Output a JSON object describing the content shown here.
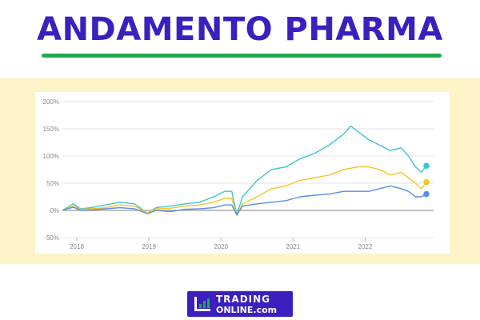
{
  "header": {
    "title": "ANDAMENTO PHARMA"
  },
  "colors": {
    "title": "#3b1fbf",
    "underline": "#1faa4b",
    "band": "#fdf3c6",
    "logo_bg": "#3b1fbf",
    "logo_accent": "#1faa4b"
  },
  "logo": {
    "line1": "TRADING",
    "line2": "ONLINE.com",
    "icon": "bar-chart-icon"
  },
  "chart_data": {
    "type": "line",
    "title": "",
    "xlabel": "",
    "ylabel": "",
    "xlim": [
      2017.8,
      2022.95
    ],
    "ylim": [
      -50,
      200
    ],
    "ytick_values": [
      -50,
      0,
      50,
      100,
      150,
      200
    ],
    "ytick_labels": [
      "-50%",
      "0%",
      "50%",
      "100%",
      "150%",
      "200%"
    ],
    "xtick_values": [
      2018,
      2019,
      2020,
      2021,
      2022
    ],
    "xtick_labels": [
      "2018",
      "2019",
      "2020",
      "2021",
      "2022"
    ],
    "grid": true,
    "zero_line": true,
    "series": [
      {
        "color": "#3dc4d8",
        "points": [
          [
            2017.8,
            0
          ],
          [
            2017.95,
            12
          ],
          [
            2018.05,
            3
          ],
          [
            2018.2,
            5
          ],
          [
            2018.4,
            10
          ],
          [
            2018.6,
            15
          ],
          [
            2018.8,
            12
          ],
          [
            2018.98,
            -5
          ],
          [
            2019.1,
            5
          ],
          [
            2019.3,
            8
          ],
          [
            2019.5,
            12
          ],
          [
            2019.7,
            15
          ],
          [
            2019.9,
            25
          ],
          [
            2020.05,
            35
          ],
          [
            2020.15,
            35
          ],
          [
            2020.22,
            -8
          ],
          [
            2020.3,
            25
          ],
          [
            2020.5,
            55
          ],
          [
            2020.7,
            75
          ],
          [
            2020.9,
            80
          ],
          [
            2021.1,
            95
          ],
          [
            2021.3,
            105
          ],
          [
            2021.5,
            120
          ],
          [
            2021.7,
            140
          ],
          [
            2021.8,
            155
          ],
          [
            2021.9,
            145
          ],
          [
            2022.05,
            130
          ],
          [
            2022.2,
            120
          ],
          [
            2022.35,
            110
          ],
          [
            2022.5,
            115
          ],
          [
            2022.6,
            100
          ],
          [
            2022.7,
            80
          ],
          [
            2022.78,
            70
          ],
          [
            2022.85,
            82
          ]
        ]
      },
      {
        "color": "#f7c325",
        "points": [
          [
            2017.8,
            0
          ],
          [
            2017.95,
            8
          ],
          [
            2018.05,
            2
          ],
          [
            2018.2,
            3
          ],
          [
            2018.4,
            5
          ],
          [
            2018.6,
            10
          ],
          [
            2018.8,
            8
          ],
          [
            2018.98,
            -5
          ],
          [
            2019.1,
            3
          ],
          [
            2019.3,
            4
          ],
          [
            2019.5,
            8
          ],
          [
            2019.7,
            10
          ],
          [
            2019.9,
            15
          ],
          [
            2020.05,
            22
          ],
          [
            2020.15,
            22
          ],
          [
            2020.22,
            -10
          ],
          [
            2020.3,
            12
          ],
          [
            2020.5,
            25
          ],
          [
            2020.7,
            40
          ],
          [
            2020.9,
            45
          ],
          [
            2021.1,
            55
          ],
          [
            2021.3,
            60
          ],
          [
            2021.5,
            65
          ],
          [
            2021.7,
            75
          ],
          [
            2021.9,
            80
          ],
          [
            2022.05,
            80
          ],
          [
            2022.2,
            75
          ],
          [
            2022.35,
            65
          ],
          [
            2022.5,
            70
          ],
          [
            2022.6,
            60
          ],
          [
            2022.7,
            50
          ],
          [
            2022.78,
            40
          ],
          [
            2022.85,
            52
          ]
        ]
      },
      {
        "color": "#5b8de6",
        "points": [
          [
            2017.8,
            0
          ],
          [
            2017.95,
            6
          ],
          [
            2018.05,
            0
          ],
          [
            2018.2,
            1
          ],
          [
            2018.4,
            3
          ],
          [
            2018.6,
            5
          ],
          [
            2018.8,
            3
          ],
          [
            2018.98,
            -6
          ],
          [
            2019.1,
            0
          ],
          [
            2019.3,
            -2
          ],
          [
            2019.5,
            2
          ],
          [
            2019.7,
            3
          ],
          [
            2019.9,
            5
          ],
          [
            2020.05,
            10
          ],
          [
            2020.15,
            10
          ],
          [
            2020.22,
            -8
          ],
          [
            2020.3,
            8
          ],
          [
            2020.5,
            12
          ],
          [
            2020.7,
            15
          ],
          [
            2020.9,
            18
          ],
          [
            2021.1,
            25
          ],
          [
            2021.3,
            28
          ],
          [
            2021.5,
            30
          ],
          [
            2021.7,
            35
          ],
          [
            2021.9,
            35
          ],
          [
            2022.05,
            35
          ],
          [
            2022.2,
            40
          ],
          [
            2022.35,
            45
          ],
          [
            2022.5,
            40
          ],
          [
            2022.6,
            35
          ],
          [
            2022.7,
            25
          ],
          [
            2022.78,
            25
          ],
          [
            2022.85,
            30
          ]
        ]
      }
    ]
  }
}
